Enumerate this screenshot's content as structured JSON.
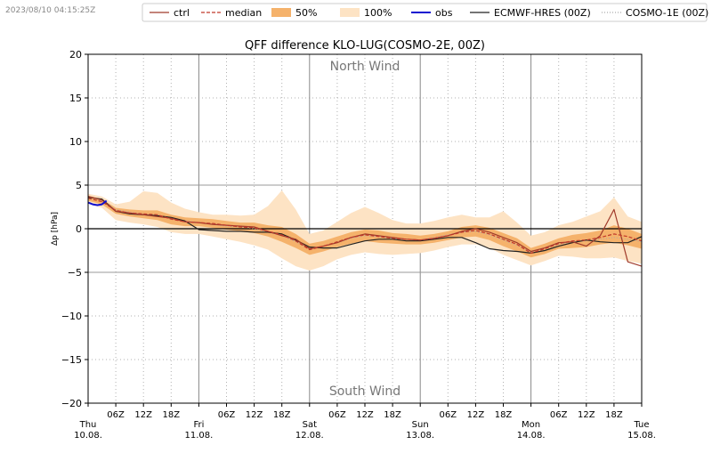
{
  "timestamp": "2023/08/10 04:15:25Z",
  "chart_data": {
    "type": "line",
    "title": "QFF difference KLO-LUG(COSMO-2E, 00Z)",
    "ylabel": "Δp [hPa]",
    "xlabel": "",
    "ylim": [
      -20,
      20
    ],
    "xlim_hours": [
      0,
      120
    ],
    "yticks": [
      20,
      15,
      10,
      5,
      0,
      -5,
      -10,
      -15,
      -20
    ],
    "annotations": {
      "north": "North Wind",
      "south": "South Wind"
    },
    "day_labels": [
      {
        "h": 0,
        "day": "Thu",
        "date": "10.08."
      },
      {
        "h": 24,
        "day": "Fri",
        "date": "11.08."
      },
      {
        "h": 48,
        "day": "Sat",
        "date": "12.08."
      },
      {
        "h": 72,
        "day": "Sun",
        "date": "13.08."
      },
      {
        "h": 96,
        "day": "Mon",
        "date": "14.08."
      },
      {
        "h": 120,
        "day": "Tue",
        "date": "15.08."
      }
    ],
    "hour_labels": [
      "06Z",
      "12Z",
      "18Z"
    ],
    "legend": [
      {
        "key": "ctrl",
        "label": "ctrl",
        "color": "#a03a2a",
        "style": "line"
      },
      {
        "key": "median",
        "label": "median",
        "color": "#c0392b",
        "style": "dashed"
      },
      {
        "key": "p50",
        "label": "50%",
        "color": "#f5b26b",
        "style": "fill"
      },
      {
        "key": "p100",
        "label": "100%",
        "color": "#fde3c4",
        "style": "fill"
      },
      {
        "key": "obs",
        "label": "obs",
        "color": "#1010d0",
        "style": "line"
      },
      {
        "key": "ecmwf",
        "label": "ECMWF-HRES (00Z)",
        "color": "#222222",
        "style": "line"
      },
      {
        "key": "cosmo1e",
        "label": "COSMO-1E (00Z)",
        "color": "#aaaaaa",
        "style": "dotted"
      }
    ],
    "x": [
      0,
      3,
      6,
      9,
      12,
      15,
      18,
      21,
      24,
      27,
      30,
      33,
      36,
      39,
      42,
      45,
      48,
      51,
      54,
      57,
      60,
      63,
      66,
      69,
      72,
      75,
      78,
      81,
      84,
      87,
      90,
      93,
      96,
      99,
      102,
      105,
      108,
      111,
      114,
      117,
      120
    ],
    "series": [
      {
        "name": "ctrl",
        "values": [
          3.7,
          3.3,
          2.0,
          1.8,
          1.6,
          1.4,
          1.2,
          0.8,
          0.7,
          0.5,
          0.4,
          0.3,
          0.2,
          -0.3,
          -0.8,
          -1.2,
          -2.3,
          -2.0,
          -1.6,
          -1.0,
          -0.6,
          -0.8,
          -1.0,
          -1.2,
          -1.3,
          -1.1,
          -0.8,
          -0.3,
          0.0,
          -0.4,
          -1.0,
          -1.6,
          -2.6,
          -2.2,
          -1.6,
          -1.5,
          -2.0,
          -0.8,
          2.2,
          -3.8,
          -4.3
        ]
      },
      {
        "name": "median",
        "values": [
          3.5,
          3.1,
          2.1,
          1.8,
          1.7,
          1.6,
          1.1,
          0.8,
          0.7,
          0.6,
          0.4,
          0.2,
          0.1,
          -0.3,
          -0.7,
          -1.4,
          -2.4,
          -2.0,
          -1.5,
          -1.0,
          -0.7,
          -0.9,
          -1.1,
          -1.2,
          -1.3,
          -1.1,
          -0.8,
          -0.4,
          -0.2,
          -0.6,
          -1.2,
          -1.8,
          -2.8,
          -2.3,
          -1.7,
          -1.4,
          -1.3,
          -1.0,
          -0.6,
          -0.9,
          -1.4
        ]
      },
      {
        "name": "50% low",
        "values": [
          3.2,
          2.8,
          1.7,
          1.4,
          1.2,
          1.0,
          0.5,
          0.3,
          0.3,
          0.1,
          -0.1,
          -0.3,
          -0.5,
          -0.9,
          -1.5,
          -2.2,
          -3.0,
          -2.6,
          -2.1,
          -1.7,
          -1.4,
          -1.6,
          -1.7,
          -1.8,
          -1.8,
          -1.6,
          -1.3,
          -1.0,
          -0.9,
          -1.3,
          -2.0,
          -2.6,
          -3.3,
          -2.9,
          -2.3,
          -2.2,
          -2.1,
          -1.8,
          -1.6,
          -1.9,
          -2.3
        ]
      },
      {
        "name": "50% high",
        "values": [
          3.8,
          3.4,
          2.4,
          2.2,
          2.1,
          2.1,
          1.6,
          1.3,
          1.2,
          1.1,
          0.9,
          0.7,
          0.7,
          0.4,
          0.2,
          -0.6,
          -1.7,
          -1.4,
          -0.9,
          -0.4,
          -0.1,
          -0.2,
          -0.5,
          -0.6,
          -0.8,
          -0.6,
          -0.3,
          0.2,
          0.4,
          0.1,
          -0.5,
          -1.1,
          -2.2,
          -1.7,
          -1.1,
          -0.7,
          -0.5,
          -0.2,
          0.4,
          0.0,
          -0.6
        ]
      },
      {
        "name": "100% low",
        "values": [
          2.9,
          2.4,
          1.0,
          0.7,
          0.5,
          0.2,
          -0.4,
          -0.6,
          -0.6,
          -0.9,
          -1.2,
          -1.5,
          -1.9,
          -2.4,
          -3.4,
          -4.3,
          -4.8,
          -4.3,
          -3.5,
          -3.0,
          -2.7,
          -2.9,
          -3.0,
          -2.9,
          -2.8,
          -2.5,
          -2.1,
          -1.8,
          -1.8,
          -2.2,
          -3.0,
          -3.6,
          -4.2,
          -3.7,
          -3.1,
          -3.2,
          -3.4,
          -3.4,
          -3.3,
          -3.7,
          -4.0
        ]
      },
      {
        "name": "100% high",
        "values": [
          4.0,
          3.7,
          2.8,
          3.1,
          4.3,
          4.1,
          3.0,
          2.3,
          1.9,
          1.6,
          1.6,
          1.5,
          1.6,
          2.6,
          4.4,
          2.2,
          -0.6,
          -0.2,
          0.8,
          1.8,
          2.5,
          1.8,
          1.0,
          0.6,
          0.6,
          0.9,
          1.3,
          1.6,
          1.3,
          1.3,
          2.0,
          0.7,
          -0.8,
          -0.4,
          0.4,
          0.8,
          1.4,
          2.0,
          3.6,
          1.4,
          0.8
        ]
      },
      {
        "name": "ECMWF-HRES (00Z)",
        "values": [
          3.6,
          3.4,
          2.0,
          1.7,
          1.6,
          1.5,
          1.3,
          0.9,
          -0.1,
          -0.2,
          -0.3,
          -0.3,
          -0.4,
          -0.4,
          -0.6,
          -1.3,
          -2.1,
          -2.2,
          -2.2,
          -1.8,
          -1.4,
          -1.2,
          -1.2,
          -1.4,
          -1.4,
          -1.2,
          -1.0,
          -1.0,
          -1.6,
          -2.3,
          -2.5,
          -2.6,
          -2.8,
          -2.5,
          -2.0,
          -1.6,
          -1.3,
          -1.5,
          -1.6,
          -1.6,
          -0.9
        ]
      },
      {
        "name": "COSMO-1E (00Z)",
        "values": [
          3.5,
          3.2,
          2.2,
          1.9,
          1.7,
          1.5,
          1.2,
          0.9,
          0.7,
          0.5,
          0.3,
          0.2,
          0.0,
          -0.4,
          -0.8,
          -1.5,
          -2.3,
          -2.0,
          -1.6,
          -1.1,
          -0.8,
          -0.9,
          -1.1,
          -1.2,
          -1.3,
          -1.0,
          -0.7,
          -0.4,
          -0.3,
          -0.7,
          -1.3,
          -1.9,
          -2.7,
          -2.3,
          -1.8,
          -1.5,
          -1.4,
          -1.2,
          -1.0,
          -1.2,
          -1.5
        ]
      },
      {
        "name": "obs",
        "x": [
          0,
          1,
          2,
          3,
          4
        ],
        "values": [
          3.0,
          2.8,
          2.7,
          2.8,
          3.2
        ]
      }
    ]
  }
}
